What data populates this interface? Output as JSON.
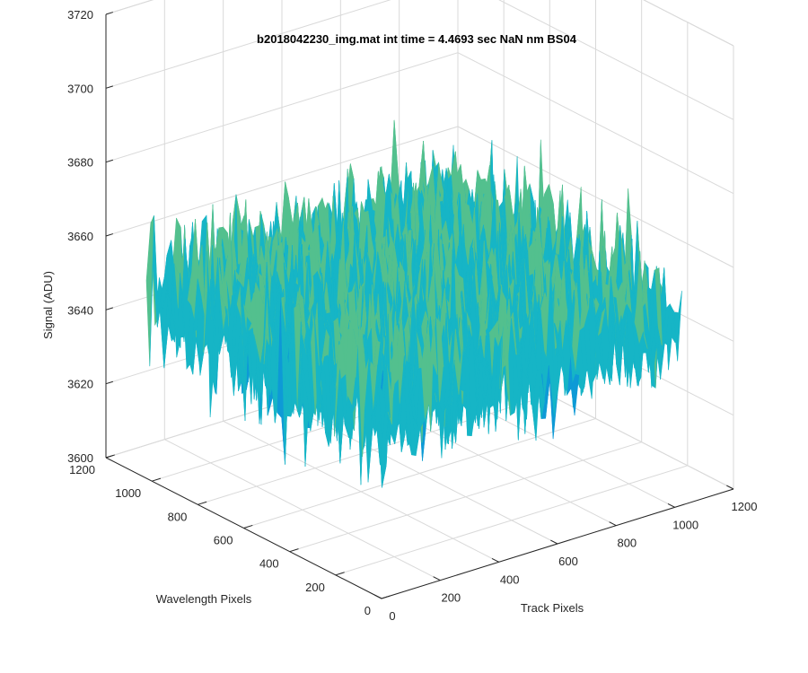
{
  "chart_data": {
    "type": "surface",
    "title": "b2018042230_img.mat int time = 4.4693 sec  NaN nm BS04",
    "xlabel": "Track Pixels",
    "ylabel": "Wavelength Pixels",
    "zlabel": "Signal (ADU)",
    "xlim": [
      0,
      1200
    ],
    "ylim": [
      0,
      1200
    ],
    "zlim": [
      3600,
      3720
    ],
    "x_ticks": [
      "0",
      "200",
      "400",
      "600",
      "800",
      "1000",
      "1200"
    ],
    "y_ticks": [
      "0",
      "200",
      "400",
      "600",
      "800",
      "1000",
      "1200"
    ],
    "z_ticks": [
      "3600",
      "3620",
      "3640",
      "3660",
      "3680",
      "3700",
      "3720"
    ],
    "data_x_range": [
      0,
      1024
    ],
    "data_y_range": [
      0,
      1024
    ],
    "signal_mean": 3650,
    "signal_approx_range": [
      3615,
      3705
    ],
    "colormap": [
      "#0072bd",
      "#0e9ad6",
      "#16b5c6",
      "#53c08e",
      "#a5be51",
      "#e2b93b",
      "#f4d842"
    ],
    "grid": true
  }
}
